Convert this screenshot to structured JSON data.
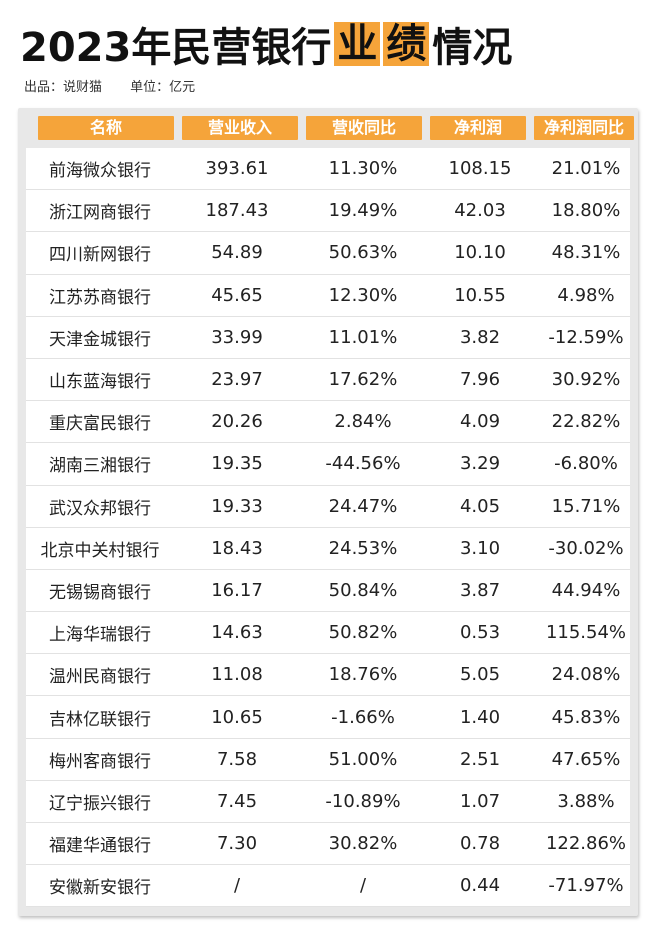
{
  "title": {
    "prefix": "2023年民营银行",
    "highlight1": "业",
    "highlight2": "绩",
    "suffix": "情况",
    "accent_color": "#f5a43a"
  },
  "source": {
    "publisher": "出品：说财猫",
    "unit": "单位：亿元"
  },
  "table": {
    "headers": [
      "名称",
      "营业收入",
      "营收同比",
      "净利润",
      "净利润同比"
    ],
    "rows": [
      [
        "前海微众银行",
        "393.61",
        "11.30%",
        "108.15",
        "21.01%"
      ],
      [
        "浙江网商银行",
        "187.43",
        "19.49%",
        "42.03",
        "18.80%"
      ],
      [
        "四川新网银行",
        "54.89",
        "50.63%",
        "10.10",
        "48.31%"
      ],
      [
        "江苏苏商银行",
        "45.65",
        "12.30%",
        "10.55",
        "4.98%"
      ],
      [
        "天津金城银行",
        "33.99",
        "11.01%",
        "3.82",
        "-12.59%"
      ],
      [
        "山东蓝海银行",
        "23.97",
        "17.62%",
        "7.96",
        "30.92%"
      ],
      [
        "重庆富民银行",
        "20.26",
        "2.84%",
        "4.09",
        "22.82%"
      ],
      [
        "湖南三湘银行",
        "19.35",
        "-44.56%",
        "3.29",
        "-6.80%"
      ],
      [
        "武汉众邦银行",
        "19.33",
        "24.47%",
        "4.05",
        "15.71%"
      ],
      [
        "北京中关村银行",
        "18.43",
        "24.53%",
        "3.10",
        "-30.02%"
      ],
      [
        "无锡锡商银行",
        "16.17",
        "50.84%",
        "3.87",
        "44.94%"
      ],
      [
        "上海华瑞银行",
        "14.63",
        "50.82%",
        "0.53",
        "115.54%"
      ],
      [
        "温州民商银行",
        "11.08",
        "18.76%",
        "5.05",
        "24.08%"
      ],
      [
        "吉林亿联银行",
        "10.65",
        "-1.66%",
        "1.40",
        "45.83%"
      ],
      [
        "梅州客商银行",
        "7.58",
        "51.00%",
        "2.51",
        "47.65%"
      ],
      [
        "辽宁振兴银行",
        "7.45",
        "-10.89%",
        "1.07",
        "3.88%"
      ],
      [
        "福建华通银行",
        "7.30",
        "30.82%",
        "0.78",
        "122.86%"
      ],
      [
        "安徽新安银行",
        "/",
        "/",
        "0.44",
        "-71.97%"
      ]
    ]
  }
}
